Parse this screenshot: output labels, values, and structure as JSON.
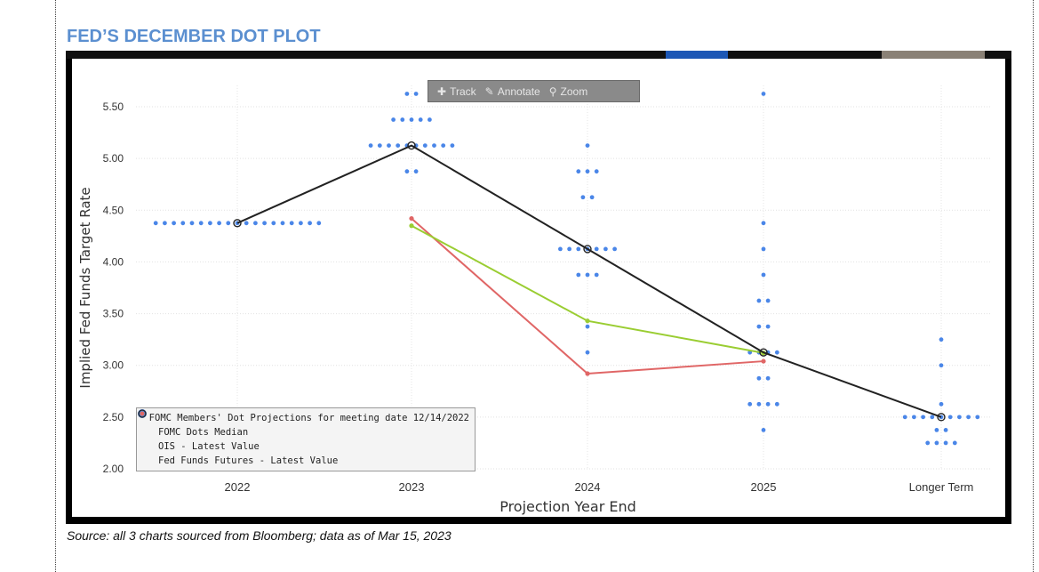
{
  "header": {
    "title": "FED’S DECEMBER DOT PLOT"
  },
  "toolbar": {
    "buttons": [
      {
        "label": "Track",
        "icon": "crosshair-icon"
      },
      {
        "label": "Annotate",
        "icon": "pencil-icon"
      },
      {
        "label": "Zoom",
        "icon": "magnifier-icon"
      }
    ]
  },
  "source": {
    "text": "Source: all 3 charts sourced from Bloomberg; data as of Mar 15, 2023"
  },
  "colors": {
    "dots": "#4a86e8",
    "median": "#222222",
    "ois": "#9acd32",
    "futures": "#e06666",
    "title": "#5b8fd0"
  },
  "chart_data": {
    "type": "scatter",
    "title": "",
    "xlabel": "Projection Year End",
    "ylabel": "Implied Fed Funds Target Rate",
    "categories": [
      "2022",
      "2023",
      "2024",
      "2025",
      "Longer Term"
    ],
    "yticks": [
      "2.00",
      "2.50",
      "3.00",
      "3.50",
      "4.00",
      "4.50",
      "5.00",
      "5.50"
    ],
    "ylim": [
      2.0,
      5.75
    ],
    "grid": true,
    "legend_position": "bottom-left",
    "series": [
      {
        "name": "FOMC Members' Dot Projections for meeting date 12/14/2022",
        "kind": "dots",
        "points": [
          {
            "category": "2022",
            "y": 4.375,
            "count": 19
          },
          {
            "category": "2023",
            "y": 5.625,
            "count": 2
          },
          {
            "category": "2023",
            "y": 5.375,
            "count": 5
          },
          {
            "category": "2023",
            "y": 5.125,
            "count": 10
          },
          {
            "category": "2023",
            "y": 4.875,
            "count": 2
          },
          {
            "category": "2024",
            "y": 5.125,
            "count": 1
          },
          {
            "category": "2024",
            "y": 4.875,
            "count": 3
          },
          {
            "category": "2024",
            "y": 4.625,
            "count": 2
          },
          {
            "category": "2024",
            "y": 4.125,
            "count": 7
          },
          {
            "category": "2024",
            "y": 3.875,
            "count": 3
          },
          {
            "category": "2024",
            "y": 3.375,
            "count": 1
          },
          {
            "category": "2024",
            "y": 3.125,
            "count": 1
          },
          {
            "category": "2025",
            "y": 5.625,
            "count": 1
          },
          {
            "category": "2025",
            "y": 4.375,
            "count": 1
          },
          {
            "category": "2025",
            "y": 4.125,
            "count": 1
          },
          {
            "category": "2025",
            "y": 3.875,
            "count": 1
          },
          {
            "category": "2025",
            "y": 3.625,
            "count": 2
          },
          {
            "category": "2025",
            "y": 3.375,
            "count": 2
          },
          {
            "category": "2025",
            "y": 3.125,
            "count": 4
          },
          {
            "category": "2025",
            "y": 2.875,
            "count": 2
          },
          {
            "category": "2025",
            "y": 2.625,
            "count": 4
          },
          {
            "category": "2025",
            "y": 2.375,
            "count": 1
          },
          {
            "category": "Longer Term",
            "y": 3.25,
            "count": 1
          },
          {
            "category": "Longer Term",
            "y": 3.0,
            "count": 1
          },
          {
            "category": "Longer Term",
            "y": 2.625,
            "count": 1
          },
          {
            "category": "Longer Term",
            "y": 2.5,
            "count": 9
          },
          {
            "category": "Longer Term",
            "y": 2.375,
            "count": 2
          },
          {
            "category": "Longer Term",
            "y": 2.25,
            "count": 4
          }
        ]
      },
      {
        "name": "FOMC Dots Median",
        "kind": "line",
        "values": [
          4.375,
          5.125,
          4.125,
          3.125,
          2.5
        ]
      },
      {
        "name": "OIS - Latest Value",
        "kind": "line",
        "values": [
          null,
          4.35,
          3.43,
          3.12,
          null
        ]
      },
      {
        "name": "Fed Funds Futures - Latest Value",
        "kind": "line",
        "values": [
          null,
          4.42,
          2.92,
          3.04,
          null
        ]
      }
    ]
  }
}
